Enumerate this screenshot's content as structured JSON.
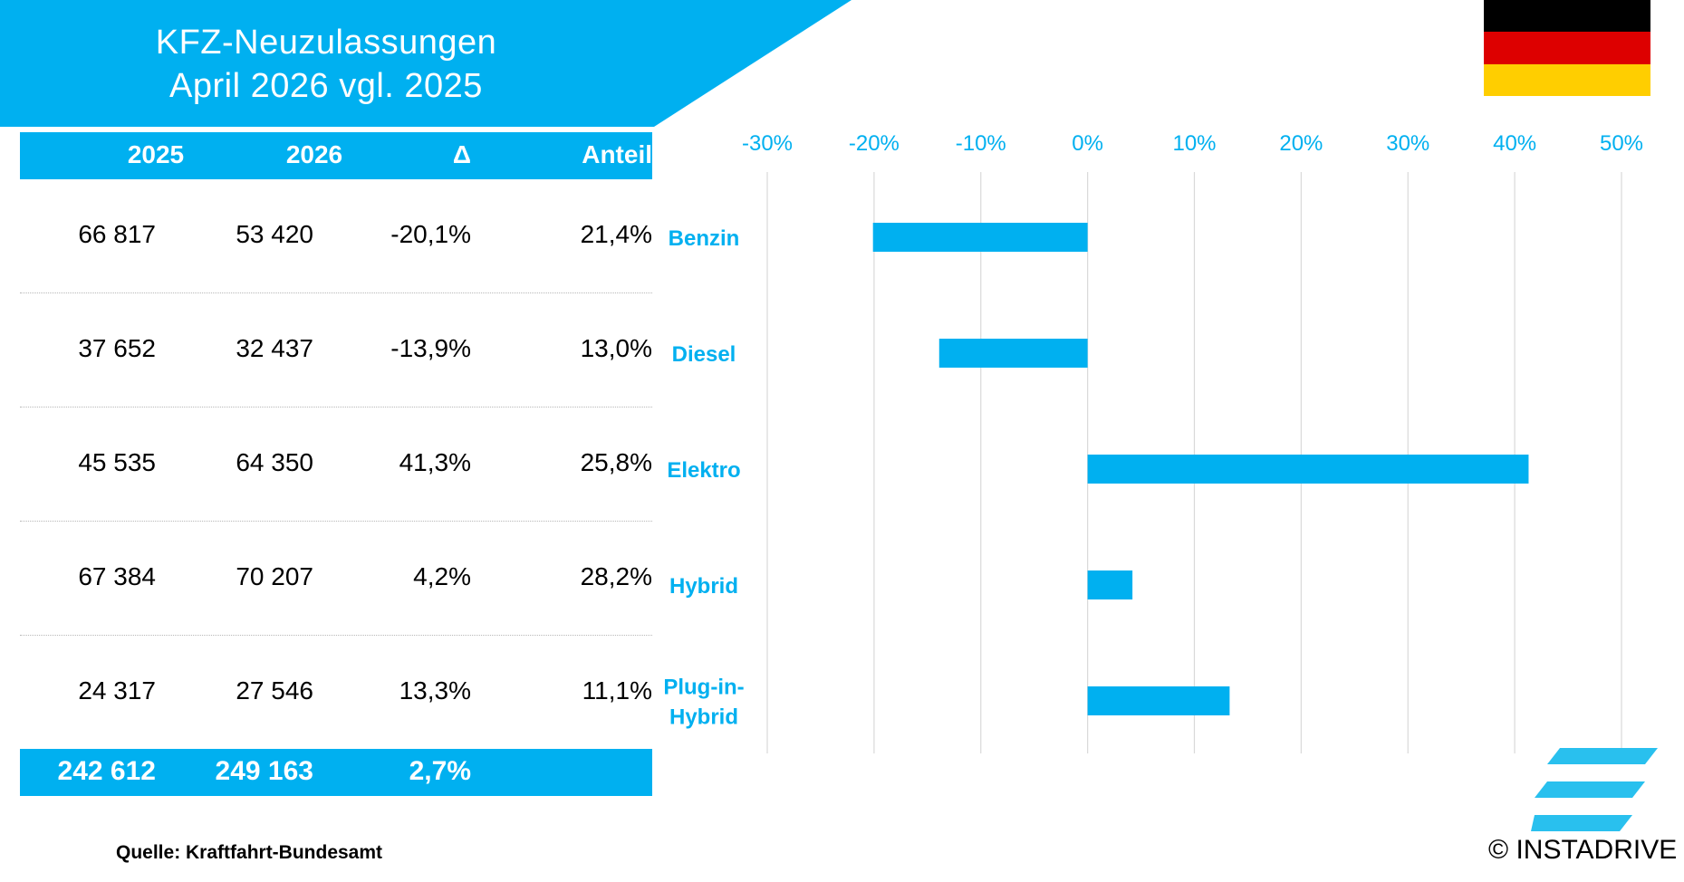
{
  "title": {
    "line1": "KFZ-Neuzulassungen",
    "line2": "April 2026 vgl. 2025"
  },
  "table": {
    "headers": [
      "2025",
      "2026",
      "Δ",
      "Anteil"
    ],
    "rows": [
      {
        "y2025": "66 817",
        "y2026": "53 420",
        "delta": "-20,1%",
        "share": "21,4%"
      },
      {
        "y2025": "37 652",
        "y2026": "32 437",
        "delta": "-13,9%",
        "share": "13,0%"
      },
      {
        "y2025": "45 535",
        "y2026": "64 350",
        "delta": "41,3%",
        "share": "25,8%"
      },
      {
        "y2025": "67 384",
        "y2026": "70 207",
        "delta": "4,2%",
        "share": "28,2%"
      },
      {
        "y2025": "24 317",
        "y2026": "27 546",
        "delta": "13,3%",
        "share": "11,1%"
      }
    ],
    "total": {
      "y2025": "242 612",
      "y2026": "249 163",
      "delta": "2,7%"
    }
  },
  "chart_data": {
    "type": "bar",
    "orientation": "horizontal",
    "categories": [
      "Benzin",
      "Diesel",
      "Elektro",
      "Hybrid",
      "Plug-in-Hybrid"
    ],
    "category_lines": [
      [
        "Benzin"
      ],
      [
        "Diesel"
      ],
      [
        "Elektro"
      ],
      [
        "Hybrid"
      ],
      [
        "Plug-in-",
        "Hybrid"
      ]
    ],
    "values": [
      -20.1,
      -13.9,
      41.3,
      4.2,
      13.3
    ],
    "xlim": [
      -30,
      50
    ],
    "ticks": [
      -30,
      -20,
      -10,
      0,
      10,
      20,
      30,
      40,
      50
    ],
    "tick_labels": [
      "-30%",
      "-20%",
      "-10%",
      "0%",
      "10%",
      "20%",
      "30%",
      "40%",
      "50%"
    ],
    "grid": "vertical",
    "axis_position": "top"
  },
  "colors": {
    "accent": "#00b0f0",
    "logo": "#29c0ee",
    "grid": "#d9d9d9",
    "flag": [
      "#000000",
      "#dd0000",
      "#ffce00"
    ]
  },
  "source": "Quelle: Kraftfahrt-Bundesamt",
  "copyright": "© INSTADRIVE"
}
